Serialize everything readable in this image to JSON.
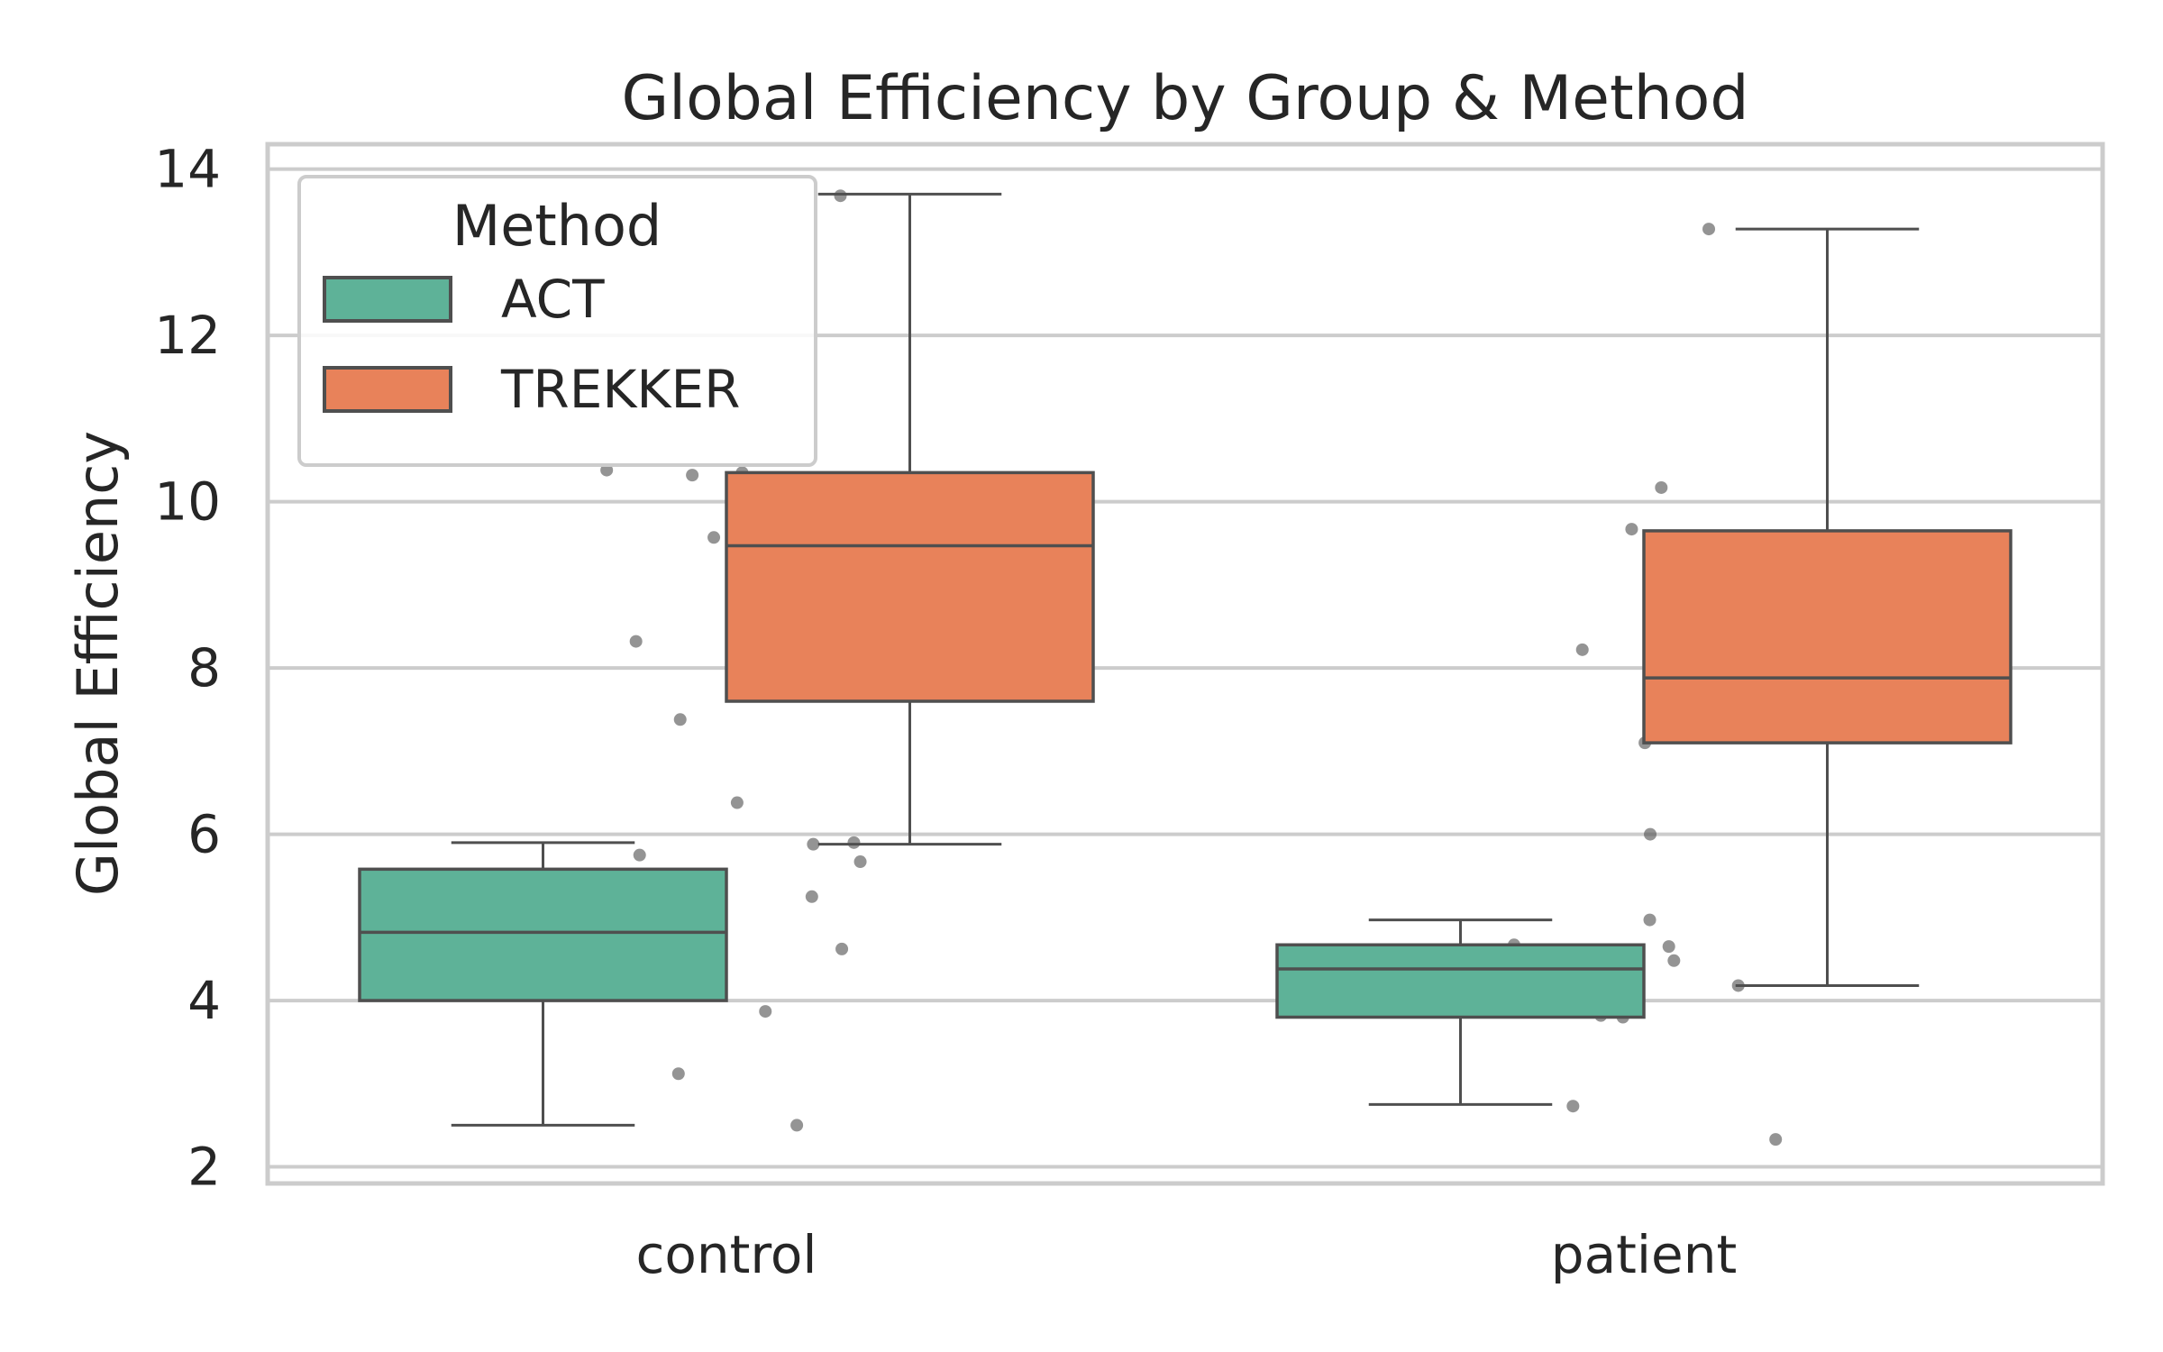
{
  "chart_data": {
    "type": "box",
    "title": "Global Efficiency by Group & Method",
    "xlabel": "",
    "ylabel": "Global Efficiency",
    "categories": [
      "control",
      "patient"
    ],
    "ylim": [
      1.8,
      14.3
    ],
    "yticks": [
      2,
      4,
      6,
      8,
      10,
      12,
      14
    ],
    "grid": true,
    "legend": {
      "title": "Method",
      "position": "top-left"
    },
    "series": [
      {
        "name": "ACT",
        "color": "#66c2a5",
        "boxes": [
          {
            "category": "control",
            "whisker_low": 2.5,
            "q1": 4.0,
            "median": 4.82,
            "q3": 5.58,
            "whisker_high": 5.9
          },
          {
            "category": "patient",
            "whisker_low": 2.75,
            "q1": 3.8,
            "median": 4.38,
            "q3": 4.67,
            "whisker_high": 4.97
          }
        ]
      },
      {
        "name": "TREKKER",
        "color": "#fc8d62",
        "boxes": [
          {
            "category": "control",
            "whisker_low": 5.88,
            "q1": 7.6,
            "median": 9.47,
            "q3": 10.35,
            "whisker_high": 13.7
          },
          {
            "category": "patient",
            "whisker_low": 4.18,
            "q1": 7.1,
            "median": 7.88,
            "q3": 9.65,
            "whisker_high": 13.28
          }
        ]
      }
    ],
    "points": {
      "color": "#4d4d4d",
      "control": [
        13.68,
        10.38,
        10.35,
        10.32,
        9.57,
        9.32,
        8.32,
        7.38,
        6.38,
        5.9,
        5.88,
        5.75,
        5.67,
        5.25,
        5.0,
        4.62,
        4.38,
        3.87,
        3.12,
        2.5
      ],
      "patient": [
        13.28,
        10.17,
        9.67,
        8.22,
        7.88,
        7.42,
        7.1,
        6.0,
        4.97,
        4.67,
        4.65,
        4.48,
        4.38,
        4.18,
        3.82,
        3.8,
        2.73,
        2.33
      ]
    }
  }
}
